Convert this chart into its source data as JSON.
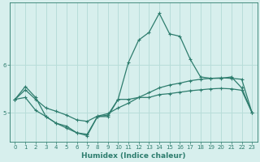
{
  "xlabel": "Humidex (Indice chaleur)",
  "x": [
    0,
    1,
    2,
    3,
    4,
    5,
    6,
    7,
    8,
    9,
    10,
    11,
    12,
    13,
    14,
    15,
    16,
    17,
    18,
    19,
    20,
    21,
    22,
    23
  ],
  "y_max": [
    5.28,
    5.55,
    5.32,
    4.92,
    4.78,
    4.72,
    4.58,
    4.52,
    4.92,
    4.95,
    5.28,
    6.05,
    6.52,
    6.68,
    7.08,
    6.65,
    6.6,
    6.12,
    5.75,
    5.72,
    5.72,
    5.75,
    5.52,
    5.0
  ],
  "y_mean": [
    5.28,
    5.48,
    5.28,
    5.1,
    5.03,
    4.95,
    4.85,
    4.82,
    4.93,
    4.98,
    5.1,
    5.2,
    5.32,
    5.42,
    5.52,
    5.58,
    5.62,
    5.67,
    5.7,
    5.72,
    5.73,
    5.72,
    5.7,
    5.0
  ],
  "y_min": [
    5.28,
    5.32,
    5.05,
    4.92,
    4.78,
    4.68,
    4.58,
    4.55,
    4.92,
    4.92,
    5.28,
    5.28,
    5.32,
    5.32,
    5.38,
    5.4,
    5.43,
    5.46,
    5.48,
    5.5,
    5.51,
    5.5,
    5.47,
    5.0
  ],
  "line_color": "#2e7d6e",
  "bg_color": "#d7efed",
  "grid_color": "#b8ddd9",
  "ylim": [
    4.4,
    7.3
  ],
  "yticks": [
    5,
    6
  ],
  "xlim": [
    -0.5,
    23.5
  ],
  "tick_fontsize": 5.0,
  "xlabel_fontsize": 6.5
}
